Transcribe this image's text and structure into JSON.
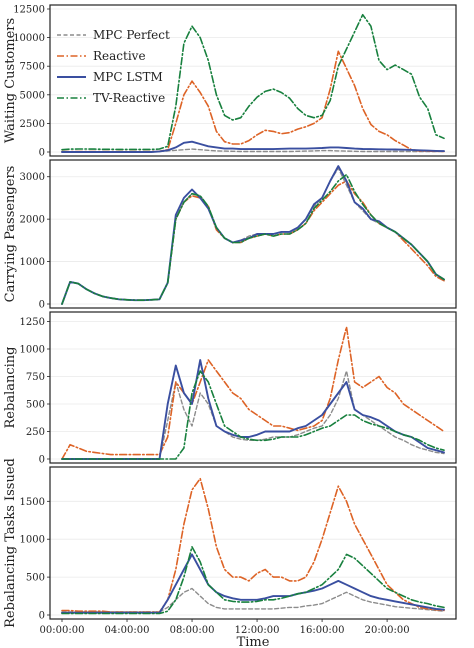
{
  "chart_data": {
    "type": "line",
    "x": [
      "00:00:00",
      "00:30:00",
      "01:00:00",
      "01:30:00",
      "02:00:00",
      "02:30:00",
      "03:00:00",
      "03:30:00",
      "04:00:00",
      "04:30:00",
      "05:00:00",
      "05:30:00",
      "06:00:00",
      "06:30:00",
      "07:00:00",
      "07:30:00",
      "08:00:00",
      "08:30:00",
      "09:00:00",
      "09:30:00",
      "10:00:00",
      "10:30:00",
      "11:00:00",
      "11:30:00",
      "12:00:00",
      "12:30:00",
      "13:00:00",
      "13:30:00",
      "14:00:00",
      "14:30:00",
      "15:00:00",
      "15:30:00",
      "16:00:00",
      "16:30:00",
      "17:00:00",
      "17:30:00",
      "18:00:00",
      "18:30:00",
      "19:00:00",
      "19:30:00",
      "20:00:00",
      "20:30:00",
      "21:00:00",
      "21:30:00",
      "22:00:00",
      "22:30:00",
      "23:00:00",
      "23:30:00"
    ],
    "xlabel": "Time",
    "xticks": [
      "00:00:00",
      "04:00:00",
      "08:00:00",
      "12:00:00",
      "16:00:00",
      "20:00:00"
    ],
    "legend": {
      "position": "top-left",
      "entries": [
        "MPC Perfect",
        "Reactive",
        "MPC LSTM",
        "TV-Reactive"
      ]
    },
    "series_styles": [
      {
        "name": "MPC Perfect",
        "color": "#8c8c8c",
        "dash": "4,2.5",
        "width": 1.4
      },
      {
        "name": "Reactive",
        "color": "#dd6326",
        "dash": "7,2.5,1.5,2.5",
        "width": 1.6
      },
      {
        "name": "MPC LSTM",
        "color": "#3a4fa0",
        "dash": "",
        "width": 1.9
      },
      {
        "name": "TV-Reactive",
        "color": "#18803e",
        "dash": "7,2.5,1.5,2.5",
        "width": 1.6
      }
    ],
    "panels": [
      {
        "ylabel": "Waiting Customers",
        "ylim": [
          0,
          12500
        ],
        "yticks": [
          0,
          2500,
          5000,
          7500,
          10000,
          12500
        ],
        "ytick_labels": [
          "0",
          "2500",
          "5000",
          "7500",
          "10000",
          "12500"
        ],
        "grid": true,
        "show_legend": true,
        "series": [
          {
            "name": "MPC Perfect",
            "values": [
              0,
              0,
              0,
              0,
              0,
              0,
              0,
              0,
              0,
              0,
              0,
              0,
              50,
              100,
              150,
              200,
              250,
              200,
              150,
              100,
              80,
              60,
              40,
              40,
              40,
              40,
              40,
              40,
              40,
              60,
              80,
              100,
              120,
              120,
              100,
              80,
              60,
              40,
              40,
              40,
              40,
              40,
              40,
              40,
              40,
              40,
              40,
              40
            ]
          },
          {
            "name": "Reactive",
            "values": [
              40,
              40,
              40,
              40,
              40,
              40,
              40,
              40,
              40,
              40,
              40,
              40,
              60,
              200,
              2500,
              5000,
              6200,
              5200,
              4000,
              1800,
              900,
              700,
              700,
              1000,
              1500,
              1900,
              1800,
              1600,
              1700,
              2000,
              2200,
              2500,
              3000,
              5500,
              8800,
              7300,
              5800,
              3800,
              2400,
              1800,
              1500,
              1000,
              600,
              200,
              100,
              80,
              60,
              50
            ]
          },
          {
            "name": "MPC LSTM",
            "values": [
              0,
              0,
              0,
              0,
              0,
              0,
              0,
              0,
              0,
              0,
              0,
              0,
              50,
              150,
              400,
              800,
              900,
              700,
              500,
              400,
              300,
              300,
              250,
              250,
              250,
              250,
              250,
              280,
              300,
              300,
              300,
              320,
              350,
              400,
              400,
              350,
              300,
              260,
              250,
              240,
              230,
              220,
              200,
              180,
              150,
              120,
              100,
              80
            ]
          },
          {
            "name": "TV-Reactive",
            "values": [
              200,
              250,
              260,
              260,
              250,
              240,
              240,
              230,
              230,
              230,
              230,
              230,
              260,
              500,
              4000,
              9500,
              11000,
              10000,
              8000,
              5000,
              3200,
              2800,
              3000,
              4000,
              4800,
              5300,
              5500,
              5200,
              4700,
              3800,
              3200,
              3000,
              3200,
              4500,
              7500,
              9000,
              10500,
              12000,
              11000,
              8000,
              7200,
              7600,
              7200,
              6800,
              4800,
              3800,
              1500,
              1200
            ]
          }
        ]
      },
      {
        "ylabel": "Carrying Passengers",
        "ylim": [
          0,
          3300
        ],
        "yticks": [
          0,
          1000,
          2000,
          3000
        ],
        "ytick_labels": [
          "0",
          "1000",
          "2000",
          "3000"
        ],
        "grid": true,
        "show_legend": false,
        "series": [
          {
            "name": "MPC Perfect",
            "values": [
              0,
              520,
              480,
              350,
              250,
              180,
              140,
              110,
              100,
              90,
              90,
              100,
              110,
              500,
              2000,
              2400,
              2600,
              2550,
              2300,
              1800,
              1550,
              1450,
              1500,
              1600,
              1650,
              1650,
              1650,
              1700,
              1700,
              1800,
              2000,
              2300,
              2500,
              2900,
              3200,
              2800,
              2400,
              2200,
              2000,
              1900,
              1800,
              1700,
              1550,
              1400,
              1200,
              1000,
              700,
              580
            ]
          },
          {
            "name": "Reactive",
            "values": [
              0,
              520,
              480,
              350,
              250,
              180,
              140,
              110,
              100,
              90,
              90,
              100,
              110,
              500,
              2000,
              2400,
              2550,
              2500,
              2300,
              1750,
              1550,
              1450,
              1450,
              1550,
              1600,
              1650,
              1600,
              1650,
              1650,
              1750,
              1900,
              2200,
              2400,
              2600,
              2800,
              2900,
              2600,
              2400,
              2100,
              1900,
              1800,
              1700,
              1500,
              1300,
              1100,
              900,
              650,
              550
            ]
          },
          {
            "name": "MPC LSTM",
            "values": [
              0,
              520,
              480,
              350,
              250,
              180,
              140,
              110,
              100,
              90,
              90,
              100,
              110,
              500,
              2100,
              2500,
              2700,
              2500,
              2250,
              1800,
              1550,
              1450,
              1500,
              1550,
              1650,
              1650,
              1650,
              1700,
              1700,
              1800,
              2000,
              2350,
              2500,
              2900,
              3250,
              2900,
              2400,
              2250,
              2000,
              1950,
              1800,
              1700,
              1550,
              1400,
              1200,
              1000,
              700,
              580
            ]
          },
          {
            "name": "TV-Reactive",
            "values": [
              0,
              520,
              480,
              350,
              250,
              180,
              140,
              110,
              100,
              90,
              90,
              100,
              110,
              500,
              2000,
              2400,
              2600,
              2550,
              2300,
              1800,
              1550,
              1450,
              1450,
              1550,
              1600,
              1650,
              1600,
              1650,
              1650,
              1750,
              1900,
              2250,
              2450,
              2650,
              2900,
              3050,
              2650,
              2350,
              2100,
              1900,
              1800,
              1700,
              1550,
              1400,
              1200,
              1000,
              700,
              580
            ]
          }
        ]
      },
      {
        "ylabel": "Rebalancing",
        "ylim": [
          0,
          1300
        ],
        "yticks": [
          0,
          250,
          500,
          750,
          1000,
          1250
        ],
        "ytick_labels": [
          "0",
          "250",
          "500",
          "750",
          "1000",
          "1250"
        ],
        "grid": true,
        "show_legend": false,
        "series": [
          {
            "name": "MPC Perfect",
            "values": [
              0,
              0,
              0,
              0,
              0,
              0,
              0,
              0,
              0,
              0,
              0,
              0,
              0,
              350,
              700,
              450,
              300,
              600,
              500,
              300,
              250,
              200,
              180,
              170,
              170,
              180,
              200,
              200,
              200,
              220,
              250,
              280,
              300,
              400,
              550,
              800,
              450,
              400,
              350,
              300,
              250,
              200,
              170,
              130,
              100,
              80,
              60,
              50
            ]
          },
          {
            "name": "Reactive",
            "values": [
              0,
              130,
              100,
              70,
              60,
              50,
              40,
              40,
              40,
              40,
              40,
              40,
              40,
              200,
              700,
              600,
              500,
              700,
              900,
              800,
              700,
              600,
              550,
              450,
              400,
              350,
              300,
              300,
              280,
              260,
              280,
              300,
              350,
              550,
              900,
              1200,
              700,
              650,
              700,
              750,
              650,
              600,
              500,
              450,
              400,
              350,
              300,
              250
            ]
          },
          {
            "name": "MPC LSTM",
            "values": [
              0,
              0,
              0,
              0,
              0,
              0,
              0,
              0,
              0,
              0,
              0,
              0,
              0,
              500,
              850,
              600,
              500,
              900,
              550,
              300,
              250,
              220,
              200,
              200,
              220,
              250,
              250,
              250,
              250,
              280,
              300,
              350,
              400,
              500,
              600,
              700,
              450,
              400,
              380,
              350,
              300,
              250,
              220,
              200,
              150,
              100,
              80,
              60
            ]
          },
          {
            "name": "TV-Reactive",
            "values": [
              0,
              0,
              0,
              0,
              0,
              0,
              0,
              0,
              0,
              0,
              0,
              0,
              0,
              0,
              0,
              100,
              600,
              800,
              700,
              500,
              300,
              250,
              200,
              180,
              170,
              170,
              180,
              200,
              200,
              200,
              220,
              250,
              280,
              300,
              350,
              400,
              400,
              350,
              320,
              300,
              280,
              250,
              220,
              200,
              170,
              130,
              100,
              80
            ]
          }
        ]
      },
      {
        "ylabel": "Rebalancing Tasks Issued",
        "ylim": [
          0,
          1900
        ],
        "yticks": [
          0,
          500,
          1000,
          1500
        ],
        "ytick_labels": [
          "0",
          "500",
          "1000",
          "1500"
        ],
        "grid": true,
        "show_legend": false,
        "series": [
          {
            "name": "MPC Perfect",
            "values": [
              40,
              40,
              40,
              40,
              40,
              40,
              40,
              40,
              40,
              40,
              40,
              40,
              40,
              100,
              200,
              300,
              350,
              250,
              150,
              100,
              80,
              80,
              80,
              80,
              80,
              80,
              80,
              90,
              100,
              100,
              120,
              130,
              150,
              200,
              250,
              300,
              250,
              200,
              170,
              150,
              130,
              110,
              100,
              90,
              80,
              70,
              60,
              50
            ]
          },
          {
            "name": "Reactive",
            "values": [
              60,
              60,
              50,
              50,
              50,
              50,
              40,
              40,
              40,
              40,
              40,
              40,
              40,
              200,
              600,
              1200,
              1650,
              1800,
              1400,
              900,
              600,
              500,
              500,
              450,
              550,
              600,
              500,
              500,
              450,
              450,
              500,
              700,
              1000,
              1350,
              1700,
              1500,
              1200,
              1000,
              800,
              600,
              400,
              300,
              200,
              150,
              100,
              80,
              70,
              60
            ]
          },
          {
            "name": "MPC LSTM",
            "values": [
              30,
              30,
              30,
              30,
              30,
              30,
              30,
              30,
              30,
              30,
              30,
              30,
              30,
              200,
              400,
              600,
              800,
              600,
              400,
              300,
              250,
              220,
              200,
              200,
              200,
              220,
              250,
              250,
              250,
              280,
              300,
              320,
              350,
              400,
              450,
              400,
              350,
              300,
              250,
              220,
              200,
              180,
              160,
              140,
              120,
              100,
              80,
              70
            ]
          },
          {
            "name": "TV-Reactive",
            "values": [
              20,
              20,
              20,
              20,
              20,
              20,
              20,
              20,
              20,
              20,
              20,
              20,
              20,
              50,
              200,
              500,
              900,
              700,
              400,
              300,
              200,
              180,
              170,
              170,
              180,
              200,
              200,
              220,
              250,
              280,
              300,
              350,
              400,
              500,
              600,
              800,
              750,
              650,
              550,
              450,
              350,
              300,
              250,
              200,
              170,
              150,
              120,
              100
            ]
          }
        ]
      }
    ]
  }
}
